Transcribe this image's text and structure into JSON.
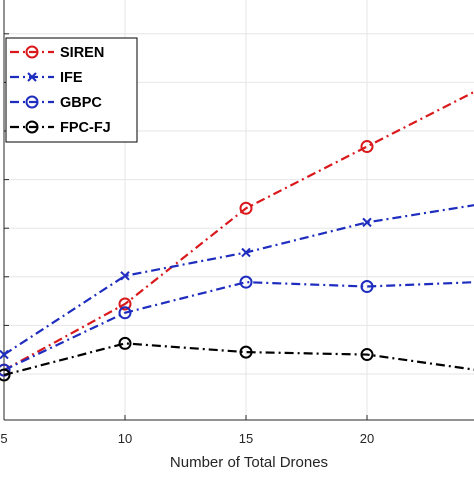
{
  "chart_data": {
    "type": "line",
    "title": "",
    "xlabel": "Number of Total Drones",
    "ylabel": "",
    "x": [
      5,
      10,
      15,
      20,
      25
    ],
    "xlim": [
      5,
      25
    ],
    "ylim": [
      0,
      8
    ],
    "x_ticks": [
      5,
      10,
      15,
      20
    ],
    "x_tick_labels": [
      "5",
      "10",
      "15",
      "20"
    ],
    "y_ticks": [
      0,
      1,
      2,
      3,
      4,
      5,
      6,
      7,
      8
    ],
    "grid": true,
    "legend_position": "top-left",
    "series": [
      {
        "name": "SIREN",
        "color": "#d9191c",
        "marker": "circle",
        "values": [
          0.08,
          1.44,
          3.41,
          4.68,
          5.95
        ]
      },
      {
        "name": "IFE",
        "color": "#1f2dbf",
        "marker": "x",
        "values": [
          0.4,
          2.02,
          2.5,
          3.12,
          3.52
        ]
      },
      {
        "name": "GBPC",
        "color": "#1f2dbf",
        "marker": "circle",
        "values": [
          0.08,
          1.26,
          1.89,
          1.8,
          1.9
        ]
      },
      {
        "name": "FPC-FJ",
        "color": "#000000",
        "marker": "circle",
        "values": [
          -0.02,
          0.63,
          0.45,
          0.4,
          0.05
        ]
      }
    ]
  }
}
